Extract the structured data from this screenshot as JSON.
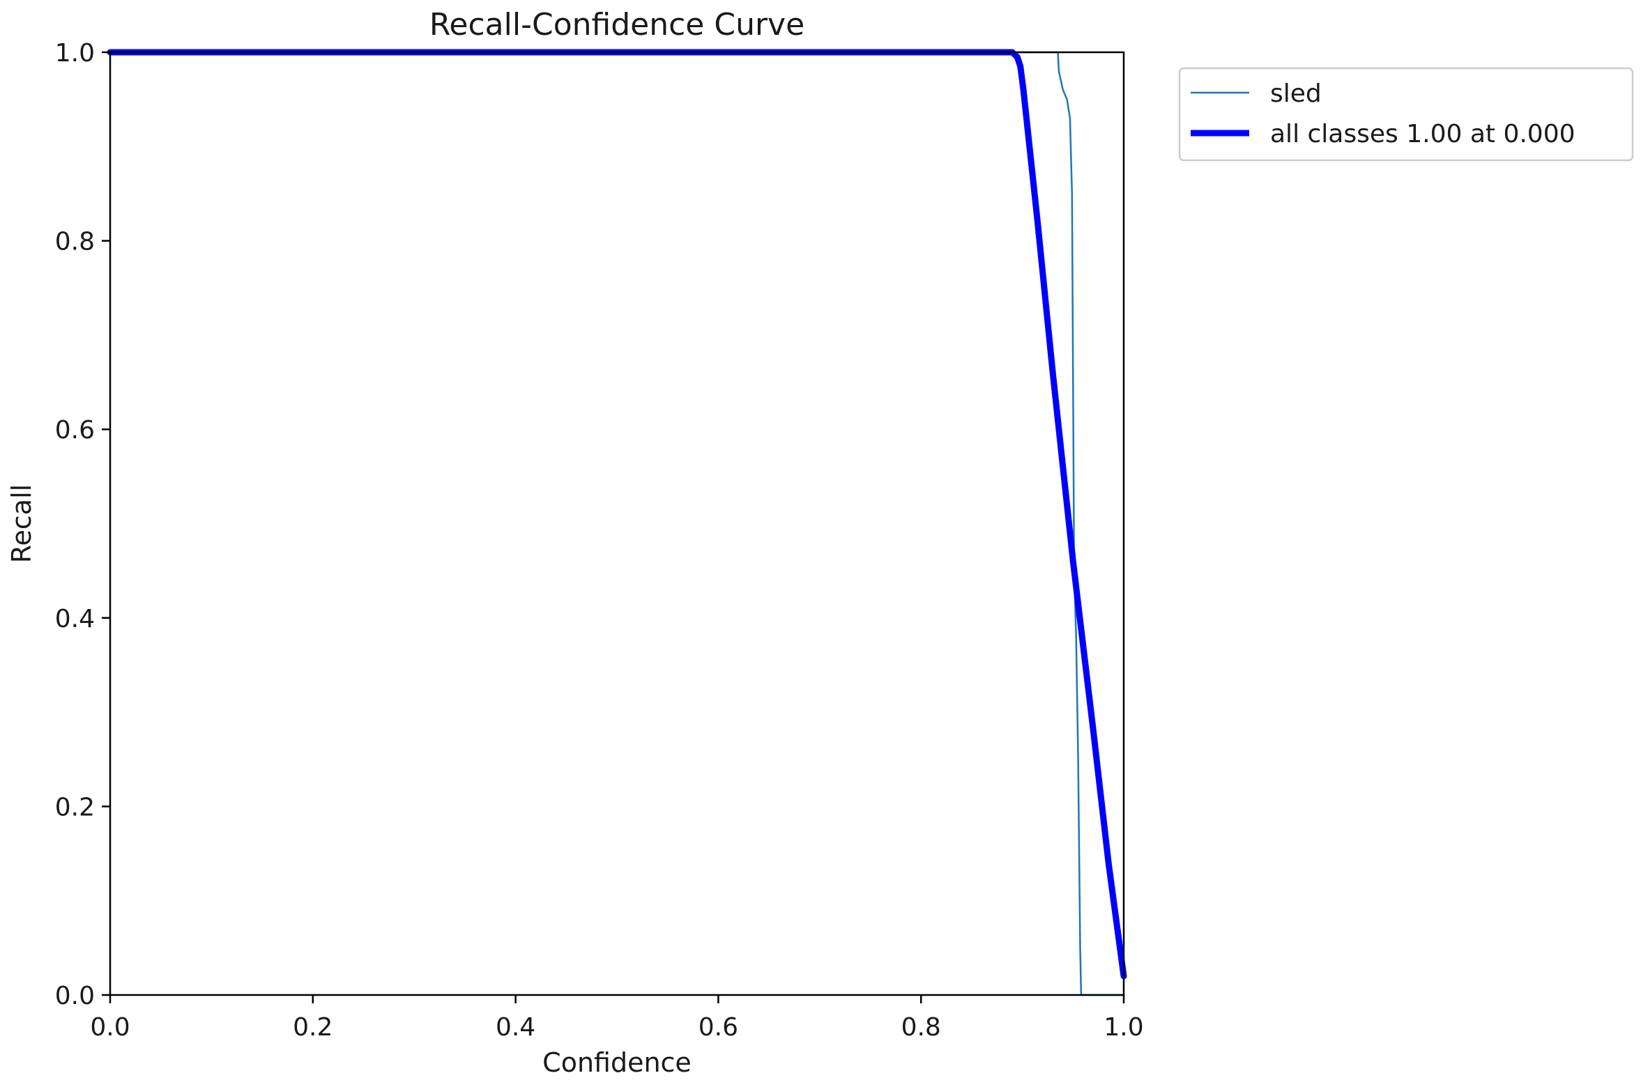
{
  "chart_data": {
    "type": "line",
    "title": "Recall-Confidence Curve",
    "xlabel": "Confidence",
    "ylabel": "Recall",
    "xlim": [
      0.0,
      1.0
    ],
    "ylim": [
      0.0,
      1.0
    ],
    "xticks": [
      "0.0",
      "0.2",
      "0.4",
      "0.6",
      "0.8",
      "1.0"
    ],
    "yticks": [
      "0.0",
      "0.2",
      "0.4",
      "0.6",
      "0.8",
      "1.0"
    ],
    "grid": false,
    "legend_position": "outside upper right",
    "series": [
      {
        "name": "sled",
        "color": "#1f77b4",
        "x": [
          0.0,
          0.935,
          0.936,
          0.94,
          0.944,
          0.947,
          0.949,
          0.95,
          0.951,
          0.953,
          0.955,
          0.957,
          0.958,
          1.0
        ],
        "y": [
          1.0,
          1.0,
          0.98,
          0.96,
          0.95,
          0.93,
          0.85,
          0.65,
          0.45,
          0.38,
          0.25,
          0.05,
          0.0,
          0.0
        ]
      },
      {
        "name": "all classes 1.00 at 0.000",
        "color": "#0000ff",
        "x": [
          0.0,
          0.89,
          0.895,
          0.898,
          0.901,
          0.905,
          0.915,
          0.93,
          0.95,
          0.97,
          0.985,
          1.0
        ],
        "y": [
          1.0,
          1.0,
          0.995,
          0.985,
          0.96,
          0.92,
          0.82,
          0.66,
          0.46,
          0.28,
          0.14,
          0.02
        ]
      }
    ]
  }
}
